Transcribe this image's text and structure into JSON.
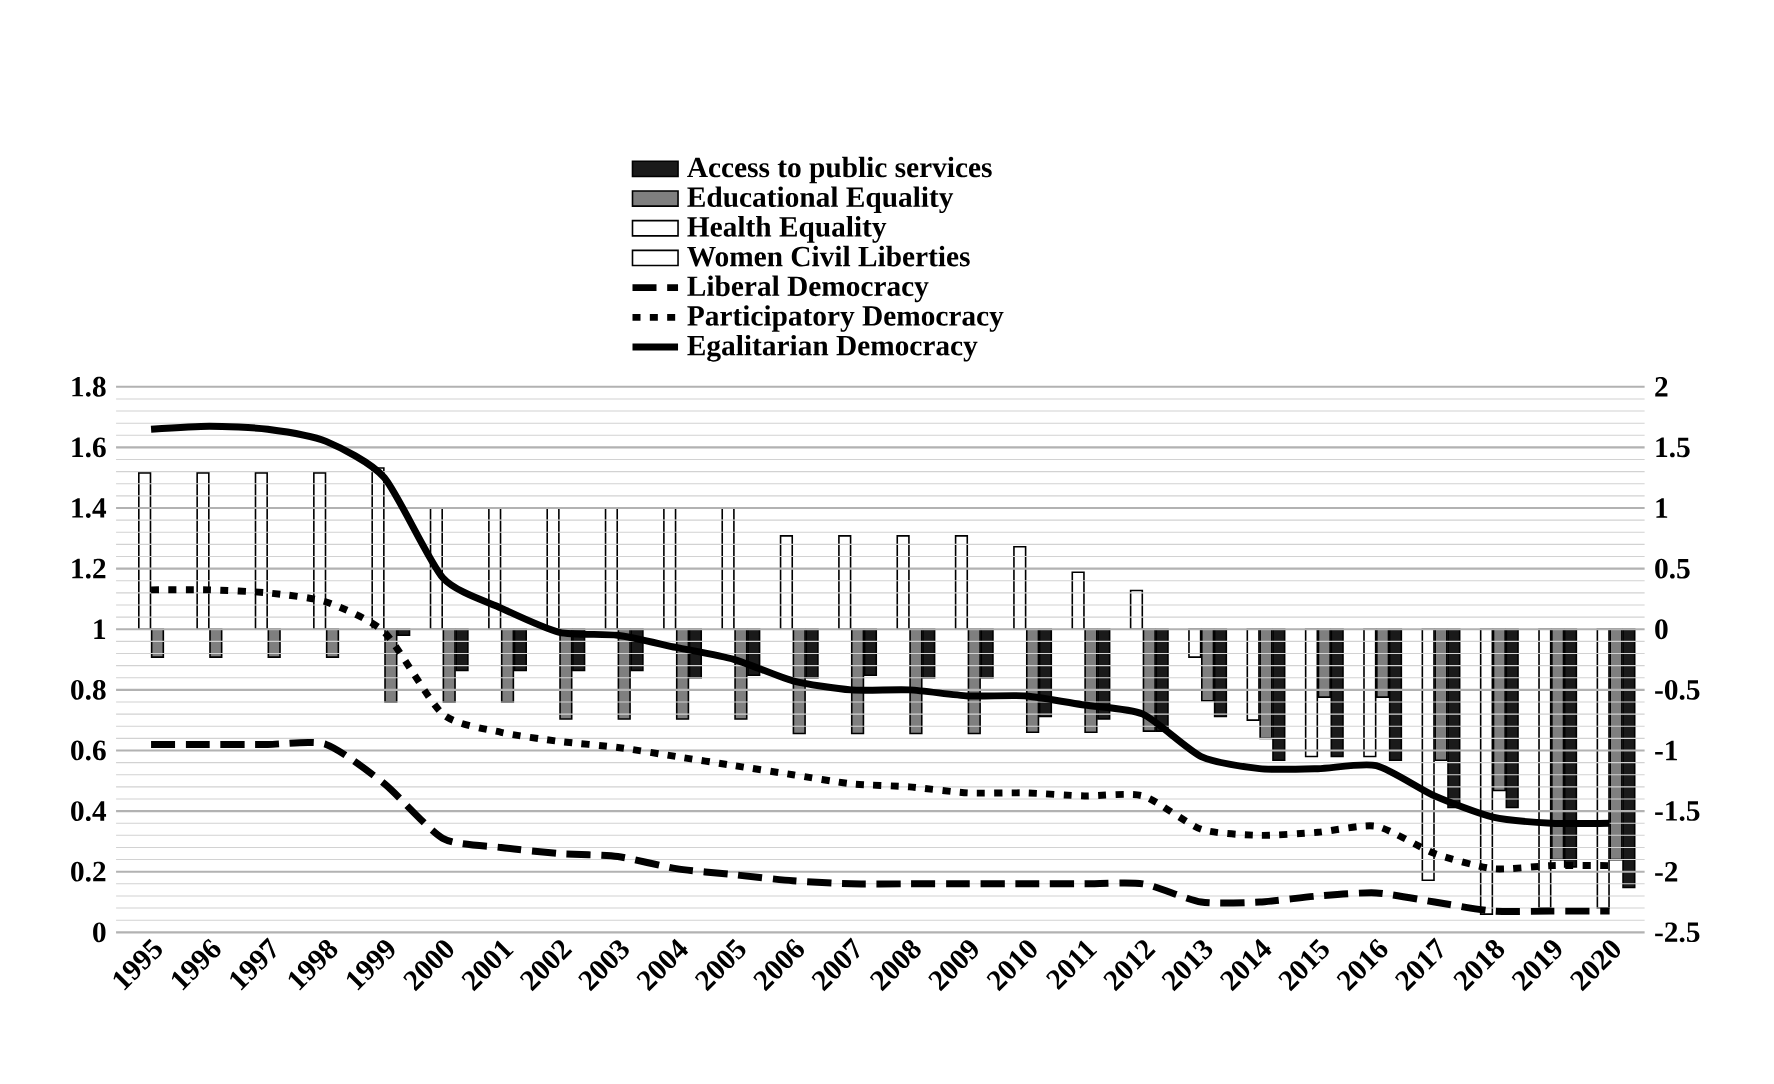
{
  "chart_data": {
    "type": "bar",
    "categories": [
      "1995",
      "1996",
      "1997",
      "1998",
      "1999",
      "2000",
      "2001",
      "2002",
      "2003",
      "2004",
      "2005",
      "2006",
      "2007",
      "2008",
      "2009",
      "2010",
      "2011",
      "2012",
      "2013",
      "2014",
      "2015",
      "2016",
      "2017",
      "2018",
      "2019",
      "2020"
    ],
    "series": [
      {
        "name": "Access to public services",
        "axis": "y2",
        "color": "#1a1a1a",
        "values": [
          null,
          null,
          null,
          null,
          -0.05,
          -0.34,
          -0.34,
          -0.34,
          -0.34,
          -0.4,
          -0.38,
          -0.4,
          -0.38,
          -0.4,
          -0.4,
          -0.72,
          -0.74,
          -0.84,
          -0.72,
          -1.08,
          -1.05,
          -1.08,
          -1.47,
          -1.47,
          -1.96,
          -2.13
        ]
      },
      {
        "name": "Educational Equality",
        "axis": "y2",
        "color": "#7f7f7f",
        "values": [
          -0.23,
          -0.23,
          -0.23,
          -0.23,
          -0.6,
          -0.6,
          -0.6,
          -0.74,
          -0.74,
          -0.74,
          -0.74,
          -0.86,
          -0.86,
          -0.86,
          -0.86,
          -0.85,
          -0.85,
          -0.84,
          -0.59,
          -0.9,
          -0.56,
          -0.56,
          -1.08,
          -1.33,
          -1.9,
          -1.9
        ]
      },
      {
        "name": "Health Equality",
        "axis": "y2",
        "color": "#ffffff",
        "values": [
          1.29,
          1.29,
          1.29,
          1.29,
          1.33,
          1.0,
          1.0,
          1.0,
          1.0,
          1.0,
          1.0,
          0.77,
          0.77,
          0.77,
          0.77,
          0.68,
          0.47,
          0.32,
          -0.23,
          -0.75,
          -1.05,
          -1.05,
          -2.07,
          -2.35,
          -2.3,
          -2.3
        ]
      },
      {
        "name": "Women Civil Liberties",
        "axis": "y2",
        "values": [
          null,
          null,
          null,
          null,
          null,
          null,
          null,
          null,
          null,
          null,
          null,
          null,
          null,
          null,
          null,
          null,
          null,
          null,
          null,
          null,
          null,
          null,
          null,
          null,
          null,
          null
        ]
      },
      {
        "name": "Liberal Democracy",
        "type": "line",
        "axis": "y",
        "color": "#000000",
        "line_style": "dashed",
        "values": [
          0.62,
          0.62,
          0.62,
          0.62,
          0.49,
          0.31,
          0.28,
          0.26,
          0.25,
          0.21,
          0.19,
          0.17,
          0.16,
          0.16,
          0.16,
          0.16,
          0.16,
          0.16,
          0.1,
          0.1,
          0.12,
          0.13,
          0.1,
          0.07,
          0.07,
          0.07
        ]
      },
      {
        "name": "Participatory Democracy",
        "type": "line",
        "axis": "y",
        "color": "#000000",
        "line_style": "dotted",
        "values": [
          1.13,
          1.13,
          1.12,
          1.09,
          0.99,
          0.72,
          0.66,
          0.63,
          0.61,
          0.58,
          0.55,
          0.52,
          0.49,
          0.48,
          0.46,
          0.46,
          0.45,
          0.45,
          0.34,
          0.32,
          0.33,
          0.35,
          0.26,
          0.21,
          0.22,
          0.22
        ]
      },
      {
        "name": "Egalitarian Democracy",
        "type": "line",
        "axis": "y",
        "color": "#000000",
        "line_style": "solid",
        "values": [
          1.66,
          1.67,
          1.66,
          1.62,
          1.5,
          1.17,
          1.07,
          0.99,
          0.98,
          0.94,
          0.9,
          0.83,
          0.8,
          0.8,
          0.78,
          0.78,
          0.75,
          0.72,
          0.58,
          0.54,
          0.54,
          0.55,
          0.45,
          0.38,
          0.36,
          0.36
        ]
      }
    ],
    "ylim": [
      0,
      1.8
    ],
    "yticks": [
      0,
      0.2,
      0.4,
      0.6,
      0.8,
      1,
      1.2,
      1.4,
      1.6,
      1.8
    ],
    "y2lim": [
      -2.5,
      2
    ],
    "y2ticks": [
      -2.5,
      -2,
      -1.5,
      -1,
      -0.5,
      0,
      0.5,
      1,
      1.5,
      2
    ],
    "grid": "y",
    "legend": "top"
  }
}
